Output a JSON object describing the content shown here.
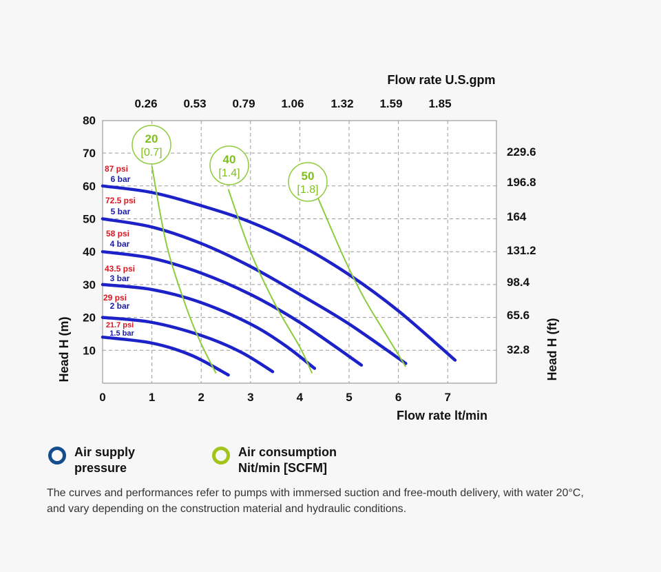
{
  "chart_data": {
    "type": "line",
    "xlabel": "Flow rate lt/min",
    "x2label": "Flow rate U.S.gpm",
    "ylabel": "Head H (m)",
    "y2label": "Head H (ft)",
    "xlim": [
      0,
      8
    ],
    "ylim": [
      0,
      80
    ],
    "x_ticks": [
      "0",
      "1",
      "2",
      "3",
      "4",
      "5",
      "6",
      "7"
    ],
    "y_ticks": [
      "10",
      "20",
      "30",
      "40",
      "50",
      "60",
      "70",
      "80"
    ],
    "x2_ticks": [
      "0.26",
      "0.53",
      "0.79",
      "1.06",
      "1.32",
      "1.59",
      "1.85"
    ],
    "y2_ticks": [
      "32.8",
      "65.6",
      "98.4",
      "131.2",
      "164",
      "196.8",
      "229.6"
    ],
    "pressure_curves": [
      {
        "bar": "6 bar",
        "psi": "87 psi",
        "x": [
          0,
          1,
          2,
          3,
          4,
          5,
          6,
          7.15
        ],
        "y": [
          60,
          58,
          54,
          49,
          42,
          33,
          22,
          7
        ]
      },
      {
        "bar": "5 bar",
        "psi": "72.5 psi",
        "x": [
          0,
          1,
          2,
          3,
          4,
          5,
          6.15
        ],
        "y": [
          50,
          47.5,
          42.5,
          35.5,
          27,
          18,
          6
        ]
      },
      {
        "bar": "4 bar",
        "psi": "58 psi",
        "x": [
          0,
          1,
          2,
          3,
          4,
          5.25
        ],
        "y": [
          40,
          38,
          33.5,
          27,
          18.5,
          5.5
        ]
      },
      {
        "bar": "3 bar",
        "psi": "43.5 psi",
        "x": [
          0,
          1,
          2,
          3,
          3.7,
          4.3
        ],
        "y": [
          30,
          28.5,
          24.5,
          18,
          11.5,
          4.5
        ]
      },
      {
        "bar": "2 bar",
        "psi": "29 psi",
        "x": [
          0,
          1,
          2,
          2.8,
          3.45
        ],
        "y": [
          20,
          18.5,
          14.5,
          9.5,
          3.5
        ]
      },
      {
        "bar": "1.5 bar",
        "psi": "21.7 psi",
        "x": [
          0,
          1,
          1.8,
          2.55
        ],
        "y": [
          14,
          12.2,
          8.5,
          2.5
        ]
      }
    ],
    "consumption_curves": [
      {
        "top": "20",
        "bottom": "[0.7]",
        "x": [
          1.0,
          1.3,
          1.7,
          2.0,
          2.3
        ],
        "y": [
          66,
          42,
          23,
          12,
          3
        ]
      },
      {
        "top": "40",
        "bottom": "[1.4]",
        "x": [
          2.55,
          3.0,
          3.5,
          4.0,
          4.25
        ],
        "y": [
          59,
          40,
          24,
          11,
          3
        ]
      },
      {
        "top": "50",
        "bottom": "[1.8]",
        "x": [
          4.35,
          4.9,
          5.3,
          5.7,
          6.15
        ],
        "y": [
          57,
          38,
          26,
          16,
          5
        ]
      }
    ]
  },
  "legend": {
    "air_supply_line1": "Air supply",
    "air_supply_line2": "pressure",
    "air_supply_color": "#154c8c",
    "air_consumption_line1": "Air consumption",
    "air_consumption_line2": "Nit/min [SCFM]",
    "air_consumption_color": "#a3c41c"
  },
  "colors": {
    "pressure_curve": "#1c22c8",
    "consumption_curve": "#8ccc3c",
    "psi_label": "#e0141e",
    "bar_label": "#1a1aa8"
  },
  "footnote": "The curves and performances refer to pumps with immersed suction and free-mouth delivery, with water 20°C, and vary depending on the construction material and hydraulic conditions."
}
